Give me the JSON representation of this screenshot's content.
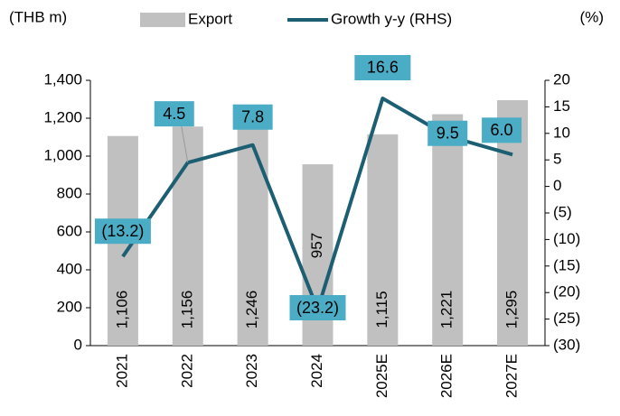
{
  "chart_data": {
    "type": "bar_line",
    "y_label": "(THB m)",
    "y2_label": "(%)",
    "categories": [
      "2021",
      "2022",
      "2023",
      "2024",
      "2025E",
      "2026E",
      "2027E"
    ],
    "series": [
      {
        "name": "Export",
        "type": "bar",
        "color": "#c0c0c0",
        "values": [
          1106,
          1156,
          1246,
          957,
          1115,
          1221,
          1295
        ],
        "value_labels": [
          "1,106",
          "1,156",
          "1,246",
          "957",
          "1,115",
          "1,221",
          "1,295"
        ]
      },
      {
        "name": "Growth y-y (RHS)",
        "type": "line",
        "axis": "y2",
        "color": "#1c5f73",
        "values": [
          -13.2,
          4.5,
          7.8,
          -23.2,
          16.6,
          9.5,
          6.0
        ],
        "value_labels": [
          "(13.2)",
          "4.5",
          "7.8",
          "(23.2)",
          "16.6",
          "9.5",
          "6.0"
        ]
      }
    ],
    "ylim": [
      0,
      1400
    ],
    "yticks": [
      0,
      200,
      400,
      600,
      800,
      {
        "value": 1000,
        "label": "1,000"
      },
      {
        "value": 1200,
        "label": "1,200"
      },
      {
        "value": 1400,
        "label": "1,400"
      }
    ],
    "y2lim": [
      -30,
      20
    ],
    "y2ticks": [
      {
        "value": -30,
        "label": "(30)"
      },
      {
        "value": -25,
        "label": "(25)"
      },
      {
        "value": -20,
        "label": "(20)"
      },
      {
        "value": -15,
        "label": "(15)"
      },
      {
        "value": -10,
        "label": "(10)"
      },
      {
        "value": -5,
        "label": "(5)"
      },
      0,
      5,
      10,
      15,
      20
    ],
    "label_color": "#4bacc6"
  }
}
